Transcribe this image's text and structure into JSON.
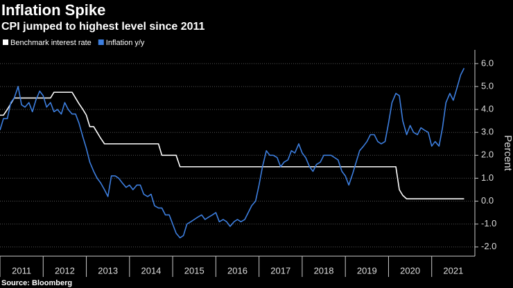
{
  "chart_data": {
    "type": "line",
    "title": "Inflation Spike",
    "subtitle": "CPI jumped to highest level since 2011",
    "source": "Source: Bloomberg",
    "y_label": "Percent",
    "xlim": [
      2011,
      2022
    ],
    "xticks": [
      2011,
      2012,
      2013,
      2014,
      2015,
      2016,
      2017,
      2018,
      2019,
      2020,
      2021
    ],
    "ylim": [
      -2.4,
      6.6
    ],
    "yticks": [
      {
        "value": -2,
        "label": "-2.0"
      },
      {
        "value": -1,
        "label": "-1.0"
      },
      {
        "value": 0,
        "label": "0.0"
      },
      {
        "value": 1,
        "label": "1.0"
      },
      {
        "value": 2,
        "label": "2.0"
      },
      {
        "value": 3,
        "label": "3.0"
      },
      {
        "value": 4,
        "label": "4.0"
      },
      {
        "value": 5,
        "label": "5.0"
      },
      {
        "value": 6,
        "label": "6.0"
      }
    ],
    "grid": true,
    "legend": "top-left",
    "x": [
      2011,
      2011.08,
      2011.17,
      2011.25,
      2011.33,
      2011.42,
      2011.5,
      2011.58,
      2011.67,
      2011.75,
      2011.83,
      2011.92,
      2012,
      2012.08,
      2012.17,
      2012.25,
      2012.33,
      2012.42,
      2012.5,
      2012.58,
      2012.67,
      2012.75,
      2012.83,
      2012.92,
      2013,
      2013.08,
      2013.17,
      2013.25,
      2013.33,
      2013.42,
      2013.5,
      2013.58,
      2013.67,
      2013.75,
      2013.83,
      2013.92,
      2014,
      2014.08,
      2014.17,
      2014.25,
      2014.33,
      2014.42,
      2014.5,
      2014.58,
      2014.67,
      2014.75,
      2014.83,
      2014.92,
      2015,
      2015.08,
      2015.17,
      2015.25,
      2015.33,
      2015.42,
      2015.5,
      2015.58,
      2015.67,
      2015.75,
      2015.83,
      2015.92,
      2016,
      2016.08,
      2016.17,
      2016.25,
      2016.33,
      2016.42,
      2016.5,
      2016.58,
      2016.67,
      2016.75,
      2016.83,
      2016.92,
      2017,
      2017.08,
      2017.17,
      2017.25,
      2017.33,
      2017.42,
      2017.5,
      2017.58,
      2017.67,
      2017.75,
      2017.83,
      2017.92,
      2018,
      2018.08,
      2018.17,
      2018.25,
      2018.33,
      2018.42,
      2018.5,
      2018.58,
      2018.67,
      2018.75,
      2018.83,
      2018.92,
      2019,
      2019.08,
      2019.17,
      2019.25,
      2019.33,
      2019.42,
      2019.5,
      2019.58,
      2019.67,
      2019.75,
      2019.83,
      2019.92,
      2020,
      2020.08,
      2020.17,
      2020.25,
      2020.33,
      2020.42,
      2020.5,
      2020.58,
      2020.67,
      2020.75,
      2020.83,
      2020.92,
      2021,
      2021.08,
      2021.17,
      2021.25,
      2021.33,
      2021.42,
      2021.5,
      2021.58,
      2021.67,
      2021.75
    ],
    "series": [
      {
        "name": "Benchmark interest rate",
        "color": "#ffffff",
        "values": [
          3.75,
          3.75,
          4.0,
          4.25,
          4.5,
          4.5,
          4.5,
          4.5,
          4.5,
          4.5,
          4.5,
          4.5,
          4.5,
          4.5,
          4.5,
          4.75,
          4.75,
          4.75,
          4.75,
          4.75,
          4.75,
          4.5,
          4.25,
          4.0,
          3.75,
          3.25,
          3.25,
          3.0,
          2.75,
          2.5,
          2.5,
          2.5,
          2.5,
          2.5,
          2.5,
          2.5,
          2.5,
          2.5,
          2.5,
          2.5,
          2.5,
          2.5,
          2.5,
          2.5,
          2.5,
          2.0,
          2.0,
          2.0,
          2.0,
          2.0,
          1.5,
          1.5,
          1.5,
          1.5,
          1.5,
          1.5,
          1.5,
          1.5,
          1.5,
          1.5,
          1.5,
          1.5,
          1.5,
          1.5,
          1.5,
          1.5,
          1.5,
          1.5,
          1.5,
          1.5,
          1.5,
          1.5,
          1.5,
          1.5,
          1.5,
          1.5,
          1.5,
          1.5,
          1.5,
          1.5,
          1.5,
          1.5,
          1.5,
          1.5,
          1.5,
          1.5,
          1.5,
          1.5,
          1.5,
          1.5,
          1.5,
          1.5,
          1.5,
          1.5,
          1.5,
          1.5,
          1.5,
          1.5,
          1.5,
          1.5,
          1.5,
          1.5,
          1.5,
          1.5,
          1.5,
          1.5,
          1.5,
          1.5,
          1.5,
          1.5,
          1.5,
          0.5,
          0.25,
          0.1,
          0.1,
          0.1,
          0.1,
          0.1,
          0.1,
          0.1,
          0.1,
          0.1,
          0.1,
          0.1,
          0.1,
          0.1,
          0.1,
          0.1,
          0.1,
          0.1
        ]
      },
      {
        "name": "Inflation y/y",
        "color": "#3d7fe0",
        "values": [
          3.1,
          3.6,
          3.6,
          4.3,
          4.5,
          5.0,
          4.2,
          4.1,
          4.3,
          3.9,
          4.4,
          4.8,
          4.6,
          4.1,
          4.3,
          3.9,
          4.0,
          3.8,
          4.3,
          4.0,
          3.8,
          3.8,
          3.4,
          2.8,
          2.3,
          1.7,
          1.3,
          1.0,
          0.8,
          0.5,
          0.2,
          1.1,
          1.1,
          1.0,
          0.8,
          0.6,
          0.7,
          0.5,
          0.7,
          0.7,
          0.3,
          0.2,
          0.3,
          -0.2,
          -0.3,
          -0.3,
          -0.6,
          -0.6,
          -1.0,
          -1.4,
          -1.6,
          -1.5,
          -1.0,
          -0.9,
          -0.8,
          -0.7,
          -0.6,
          -0.8,
          -0.7,
          -0.6,
          -0.5,
          -0.9,
          -0.8,
          -0.9,
          -1.1,
          -0.9,
          -0.8,
          -0.9,
          -0.8,
          -0.5,
          -0.2,
          0.0,
          0.7,
          1.5,
          2.2,
          2.0,
          2.0,
          1.9,
          1.5,
          1.7,
          1.8,
          2.2,
          2.1,
          2.5,
          2.1,
          1.9,
          1.5,
          1.3,
          1.6,
          1.7,
          2.0,
          2.0,
          2.0,
          1.9,
          1.8,
          1.3,
          1.1,
          0.7,
          1.2,
          1.7,
          2.2,
          2.4,
          2.6,
          2.9,
          2.9,
          2.6,
          2.5,
          2.6,
          3.4,
          4.3,
          4.7,
          4.6,
          3.5,
          2.9,
          3.3,
          3.0,
          2.9,
          3.2,
          3.1,
          3.0,
          2.4,
          2.6,
          2.4,
          3.2,
          4.3,
          4.7,
          4.4,
          4.9,
          5.5,
          5.8
        ]
      }
    ]
  }
}
